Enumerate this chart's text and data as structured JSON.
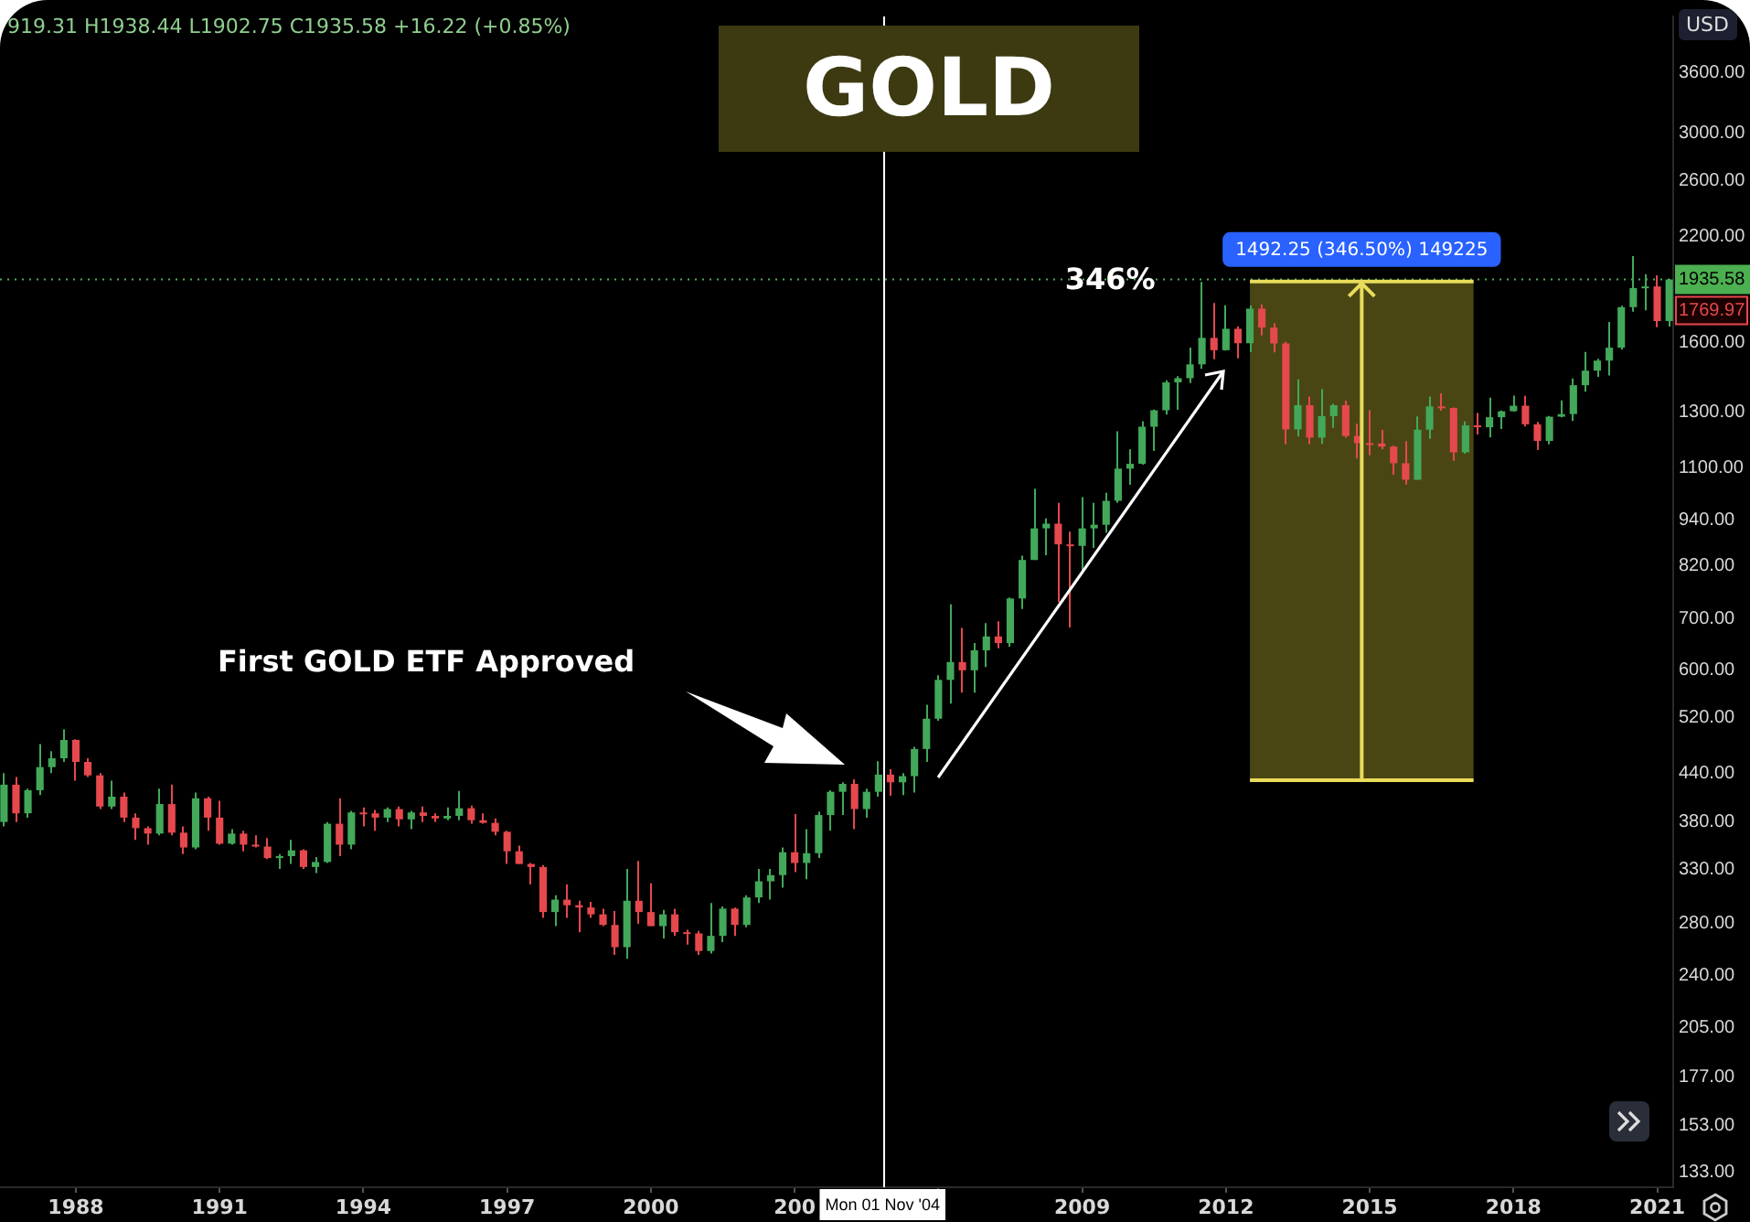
{
  "chart_data": {
    "type": "candlestick",
    "title": "GOLD",
    "ylabel": "USD",
    "x": [
      "1986-07",
      "1986-10",
      "1987-01",
      "1987-04",
      "1987-07",
      "1987-10",
      "1988-01",
      "1988-04",
      "1988-07",
      "1988-10",
      "1989-01",
      "1989-04",
      "1989-07",
      "1989-10",
      "1990-01",
      "1990-04",
      "1990-07",
      "1990-10",
      "1991-01",
      "1991-04",
      "1991-07",
      "1991-10",
      "1992-01",
      "1992-04",
      "1992-07",
      "1992-10",
      "1993-01",
      "1993-04",
      "1993-07",
      "1993-10",
      "1994-01",
      "1994-04",
      "1994-07",
      "1994-10",
      "1995-01",
      "1995-04",
      "1995-07",
      "1995-10",
      "1996-01",
      "1996-04",
      "1996-07",
      "1996-10",
      "1997-01",
      "1997-04",
      "1997-07",
      "1997-10",
      "1998-01",
      "1998-04",
      "1998-07",
      "1998-10",
      "1999-01",
      "1999-04",
      "1999-07",
      "1999-10",
      "2000-01",
      "2000-04",
      "2000-07",
      "2000-10",
      "2001-01",
      "2001-04",
      "2001-07",
      "2001-10",
      "2002-01",
      "2002-04",
      "2002-07",
      "2002-10",
      "2003-01",
      "2003-04",
      "2003-07",
      "2003-10",
      "2004-01",
      "2004-04",
      "2004-07",
      "2004-10",
      "2005-01",
      "2005-04",
      "2005-07",
      "2005-10",
      "2006-01",
      "2006-04",
      "2006-07",
      "2006-10",
      "2007-01",
      "2007-04",
      "2007-07",
      "2007-10",
      "2008-01",
      "2008-04",
      "2008-07",
      "2008-10",
      "2009-01",
      "2009-04",
      "2009-07",
      "2009-10",
      "2010-01",
      "2010-04",
      "2010-07",
      "2010-10",
      "2011-01",
      "2011-04",
      "2011-07",
      "2011-10",
      "2012-01",
      "2012-04",
      "2012-07",
      "2012-10",
      "2013-01",
      "2013-04",
      "2013-07",
      "2013-10",
      "2014-01",
      "2014-04",
      "2014-07",
      "2014-10",
      "2015-01",
      "2015-04",
      "2015-07",
      "2015-10",
      "2016-01",
      "2016-04",
      "2016-07",
      "2016-10",
      "2017-01",
      "2017-04",
      "2017-07",
      "2017-10",
      "2018-01",
      "2018-04",
      "2018-07",
      "2018-10",
      "2019-01",
      "2019-04",
      "2019-07",
      "2019-10",
      "2020-01",
      "2020-04",
      "2020-07",
      "2020-10",
      "2021-01",
      "2021-04"
    ],
    "ohlc": [
      [
        380,
        440,
        375,
        425
      ],
      [
        425,
        435,
        380,
        390
      ],
      [
        390,
        420,
        385,
        418
      ],
      [
        418,
        480,
        412,
        448
      ],
      [
        448,
        470,
        440,
        460
      ],
      [
        460,
        502,
        455,
        486
      ],
      [
        486,
        487,
        430,
        455
      ],
      [
        455,
        460,
        435,
        437
      ],
      [
        437,
        440,
        395,
        398
      ],
      [
        398,
        430,
        395,
        410
      ],
      [
        410,
        415,
        380,
        385
      ],
      [
        385,
        390,
        360,
        373
      ],
      [
        373,
        375,
        355,
        367
      ],
      [
        367,
        420,
        365,
        401
      ],
      [
        401,
        425,
        365,
        368
      ],
      [
        368,
        375,
        345,
        352
      ],
      [
        352,
        415,
        350,
        408
      ],
      [
        408,
        410,
        370,
        385
      ],
      [
        385,
        405,
        355,
        356
      ],
      [
        356,
        372,
        355,
        367
      ],
      [
        367,
        370,
        348,
        355
      ],
      [
        355,
        365,
        352,
        353
      ],
      [
        353,
        362,
        340,
        341
      ],
      [
        341,
        345,
        330,
        343
      ],
      [
        343,
        360,
        335,
        349
      ],
      [
        349,
        350,
        330,
        332
      ],
      [
        332,
        342,
        326,
        337
      ],
      [
        337,
        380,
        336,
        378
      ],
      [
        378,
        408,
        343,
        355
      ],
      [
        355,
        393,
        350,
        391
      ],
      [
        391,
        397,
        375,
        390
      ],
      [
        390,
        394,
        370,
        385
      ],
      [
        385,
        397,
        380,
        395
      ],
      [
        395,
        398,
        375,
        383
      ],
      [
        383,
        393,
        372,
        391
      ],
      [
        391,
        398,
        380,
        387
      ],
      [
        387,
        390,
        380,
        384
      ],
      [
        384,
        397,
        382,
        387
      ],
      [
        387,
        417,
        382,
        396
      ],
      [
        396,
        399,
        378,
        382
      ],
      [
        382,
        390,
        378,
        379
      ],
      [
        379,
        384,
        365,
        369
      ],
      [
        369,
        370,
        335,
        348
      ],
      [
        348,
        354,
        335,
        335
      ],
      [
        335,
        336,
        315,
        332
      ],
      [
        332,
        334,
        285,
        290
      ],
      [
        290,
        305,
        278,
        301
      ],
      [
        301,
        315,
        285,
        296
      ],
      [
        296,
        300,
        273,
        294
      ],
      [
        294,
        299,
        285,
        288
      ],
      [
        288,
        293,
        278,
        279
      ],
      [
        279,
        291,
        255,
        261
      ],
      [
        261,
        330,
        252,
        300
      ],
      [
        300,
        338,
        280,
        290
      ],
      [
        290,
        316,
        278,
        278
      ],
      [
        278,
        292,
        268,
        288
      ],
      [
        288,
        293,
        270,
        273
      ],
      [
        273,
        275,
        263,
        272
      ],
      [
        272,
        274,
        255,
        258
      ],
      [
        258,
        298,
        256,
        270
      ],
      [
        270,
        295,
        265,
        293
      ],
      [
        293,
        294,
        270,
        279
      ],
      [
        279,
        305,
        277,
        303
      ],
      [
        303,
        330,
        298,
        318
      ],
      [
        318,
        330,
        301,
        324
      ],
      [
        324,
        352,
        312,
        347
      ],
      [
        347,
        389,
        327,
        336
      ],
      [
        336,
        372,
        320,
        346
      ],
      [
        346,
        392,
        341,
        388
      ],
      [
        388,
        418,
        370,
        416
      ],
      [
        416,
        428,
        388,
        426
      ],
      [
        426,
        432,
        372,
        395
      ],
      [
        395,
        420,
        385,
        416
      ],
      [
        416,
        456,
        410,
        438
      ],
      [
        438,
        445,
        411,
        428
      ],
      [
        428,
        440,
        412,
        436
      ],
      [
        436,
        476,
        415,
        473
      ],
      [
        473,
        540,
        455,
        518
      ],
      [
        518,
        590,
        515,
        582
      ],
      [
        582,
        730,
        542,
        614
      ],
      [
        614,
        680,
        560,
        599
      ],
      [
        599,
        650,
        560,
        636
      ],
      [
        636,
        690,
        605,
        663
      ],
      [
        663,
        694,
        640,
        650
      ],
      [
        650,
        745,
        643,
        743
      ],
      [
        743,
        845,
        720,
        834
      ],
      [
        834,
        1033,
        834,
        917
      ],
      [
        917,
        945,
        846,
        930
      ],
      [
        930,
        990,
        735,
        874
      ],
      [
        874,
        908,
        681,
        870
      ],
      [
        870,
        1007,
        805,
        917
      ],
      [
        917,
        990,
        865,
        927
      ],
      [
        927,
        1020,
        905,
        996
      ],
      [
        996,
        1227,
        990,
        1097
      ],
      [
        1097,
        1162,
        1045,
        1113
      ],
      [
        1113,
        1265,
        1110,
        1244
      ],
      [
        1244,
        1310,
        1157,
        1307
      ],
      [
        1307,
        1430,
        1290,
        1421
      ],
      [
        1421,
        1448,
        1309,
        1439
      ],
      [
        1439,
        1577,
        1418,
        1500
      ],
      [
        1500,
        1921,
        1480,
        1624
      ],
      [
        1624,
        1803,
        1523,
        1565
      ],
      [
        1565,
        1791,
        1563,
        1669
      ],
      [
        1669,
        1680,
        1527,
        1598
      ],
      [
        1598,
        1790,
        1556,
        1773
      ],
      [
        1773,
        1796,
        1636,
        1675
      ],
      [
        1675,
        1697,
        1555,
        1597
      ],
      [
        1597,
        1605,
        1180,
        1234
      ],
      [
        1234,
        1434,
        1208,
        1327
      ],
      [
        1327,
        1362,
        1180,
        1204
      ],
      [
        1204,
        1392,
        1182,
        1284
      ],
      [
        1284,
        1332,
        1240,
        1327
      ],
      [
        1327,
        1345,
        1204,
        1210
      ],
      [
        1210,
        1255,
        1131,
        1184
      ],
      [
        1184,
        1307,
        1142,
        1183
      ],
      [
        1183,
        1232,
        1162,
        1172
      ],
      [
        1172,
        1175,
        1077,
        1115
      ],
      [
        1115,
        1191,
        1046,
        1061
      ],
      [
        1061,
        1283,
        1061,
        1233
      ],
      [
        1233,
        1362,
        1200,
        1322
      ],
      [
        1322,
        1375,
        1305,
        1316
      ],
      [
        1316,
        1318,
        1123,
        1152
      ],
      [
        1152,
        1264,
        1147,
        1249
      ],
      [
        1249,
        1296,
        1215,
        1242
      ],
      [
        1242,
        1357,
        1205,
        1280
      ],
      [
        1280,
        1306,
        1236,
        1303
      ],
      [
        1303,
        1366,
        1302,
        1325
      ],
      [
        1325,
        1365,
        1245,
        1253
      ],
      [
        1253,
        1262,
        1160,
        1192
      ],
      [
        1192,
        1285,
        1180,
        1282
      ],
      [
        1282,
        1346,
        1280,
        1292
      ],
      [
        1292,
        1438,
        1266,
        1409
      ],
      [
        1409,
        1557,
        1382,
        1472
      ],
      [
        1472,
        1525,
        1445,
        1517
      ],
      [
        1517,
        1703,
        1451,
        1577
      ],
      [
        1577,
        1788,
        1568,
        1781
      ],
      [
        1781,
        2075,
        1757,
        1886
      ],
      [
        1886,
        1966,
        1764,
        1895
      ],
      [
        1895,
        1960,
        1677,
        1708
      ],
      [
        1708,
        1938,
        1680,
        1935
      ]
    ],
    "colors": [
      "#43a85a",
      "#e5484d",
      "#43a85a",
      "#43a85a",
      "#43a85a",
      "#43a85a",
      "#e5484d",
      "#e5484d",
      "#e5484d",
      "#43a85a",
      "#e5484d",
      "#e5484d",
      "#e5484d",
      "#43a85a",
      "#e5484d",
      "#e5484d",
      "#43a85a",
      "#e5484d",
      "#e5484d",
      "#43a85a",
      "#e5484d",
      "#e5484d",
      "#e5484d",
      "#43a85a",
      "#43a85a",
      "#e5484d",
      "#43a85a",
      "#43a85a",
      "#e5484d",
      "#43a85a",
      "#e5484d",
      "#e5484d",
      "#43a85a",
      "#e5484d",
      "#43a85a",
      "#e5484d",
      "#e5484d",
      "#43a85a",
      "#43a85a",
      "#e5484d",
      "#e5484d",
      "#e5484d",
      "#e5484d",
      "#e5484d",
      "#e5484d",
      "#e5484d",
      "#43a85a",
      "#e5484d",
      "#e5484d",
      "#e5484d",
      "#e5484d",
      "#e5484d",
      "#43a85a",
      "#e5484d",
      "#e5484d",
      "#43a85a",
      "#e5484d",
      "#e5484d",
      "#e5484d",
      "#43a85a",
      "#43a85a",
      "#e5484d",
      "#43a85a",
      "#43a85a",
      "#43a85a",
      "#43a85a",
      "#e5484d",
      "#43a85a",
      "#43a85a",
      "#43a85a",
      "#43a85a",
      "#e5484d",
      "#43a85a",
      "#43a85a",
      "#e5484d",
      "#43a85a",
      "#43a85a",
      "#43a85a",
      "#43a85a",
      "#43a85a",
      "#e5484d",
      "#43a85a",
      "#43a85a",
      "#e5484d",
      "#43a85a",
      "#43a85a",
      "#43a85a",
      "#43a85a",
      "#e5484d",
      "#e5484d",
      "#43a85a",
      "#43a85a",
      "#43a85a",
      "#43a85a",
      "#43a85a",
      "#43a85a",
      "#43a85a",
      "#43a85a",
      "#43a85a",
      "#43a85a",
      "#43a85a",
      "#e5484d",
      "#43a85a",
      "#e5484d",
      "#43a85a",
      "#e5484d",
      "#e5484d",
      "#e5484d",
      "#43a85a",
      "#e5484d",
      "#43a85a",
      "#43a85a",
      "#e5484d",
      "#e5484d",
      "#e5484d",
      "#e5484d",
      "#e5484d",
      "#e5484d",
      "#43a85a",
      "#43a85a",
      "#e5484d",
      "#e5484d",
      "#43a85a",
      "#e5484d",
      "#43a85a",
      "#43a85a",
      "#43a85a",
      "#e5484d",
      "#e5484d",
      "#43a85a",
      "#43a85a",
      "#43a85a",
      "#43a85a",
      "#43a85a",
      "#43a85a",
      "#43a85a",
      "#43a85a",
      "#43a85a",
      "#e5484d",
      "#43a85a"
    ],
    "log": "y",
    "grid": false,
    "legend": false,
    "xlim": [
      "1986-06",
      "2021-05"
    ],
    "ylim": [
      127,
      4260
    ],
    "xticks": [
      "1988",
      "1991",
      "1994",
      "1997",
      "2000",
      {
        "value": "2003",
        "label": "200"
      },
      {
        "value": "2006",
        "label": null
      },
      "2009",
      "2012",
      "2015",
      "2018",
      "2021"
    ],
    "yticks": [
      {
        "value": 133,
        "label": "133.00"
      },
      {
        "value": 153,
        "label": "153.00"
      },
      {
        "value": 177,
        "label": "177.00"
      },
      {
        "value": 205,
        "label": "205.00"
      },
      {
        "value": 240,
        "label": "240.00"
      },
      {
        "value": 280,
        "label": "280.00"
      },
      {
        "value": 330,
        "label": "330.00"
      },
      {
        "value": 380,
        "label": "380.00"
      },
      {
        "value": 440,
        "label": "440.00"
      },
      {
        "value": 520,
        "label": "520.00"
      },
      {
        "value": 600,
        "label": "600.00"
      },
      {
        "value": 700,
        "label": "700.00"
      },
      {
        "value": 820,
        "label": "820.00"
      },
      {
        "value": 940,
        "label": "940.00"
      },
      {
        "value": 1100,
        "label": "1100.00"
      },
      {
        "value": 1300,
        "label": "1300.00"
      },
      {
        "value": 1600,
        "label": "1600.00"
      },
      {
        "value": 2200,
        "label": "2200.00"
      },
      {
        "value": 2600,
        "label": "2600.00"
      },
      {
        "value": 3000,
        "label": "3000.00"
      },
      {
        "value": 3600,
        "label": "3600.00"
      }
    ],
    "bands": [
      {
        "axis": "x",
        "from": "2012-07",
        "to": "2017-03",
        "color": "#4a4614"
      }
    ],
    "ref_lines": [
      {
        "axis": "x",
        "value": "2004-11-01",
        "label": "Mon 01 Nov '04",
        "color": "#ffffff",
        "line_style": "solid"
      },
      {
        "axis": "y",
        "value": 1935.58,
        "label": "1935.58",
        "color": "#4caf50",
        "line_style": "dotted"
      },
      {
        "axis": "y",
        "value": 1922.92,
        "color": "#e8dc5a",
        "line_style": "solid"
      },
      {
        "axis": "y",
        "value": 430.67,
        "color": "#e8dc5a",
        "line_style": "solid"
      }
    ],
    "annotations": [
      "919.31 H1938.44 L1902.75 C1935.58 +16.22 (+0.85%)",
      "1769.97",
      {
        "text": "346%",
        "x": "2009-08",
        "y": 1922.92
      },
      "First GOLD ETF Approved",
      {
        "text": "1492.25 (346.50%) 149225",
        "x": "2014-11",
        "y": 1922.92
      }
    ]
  }
}
